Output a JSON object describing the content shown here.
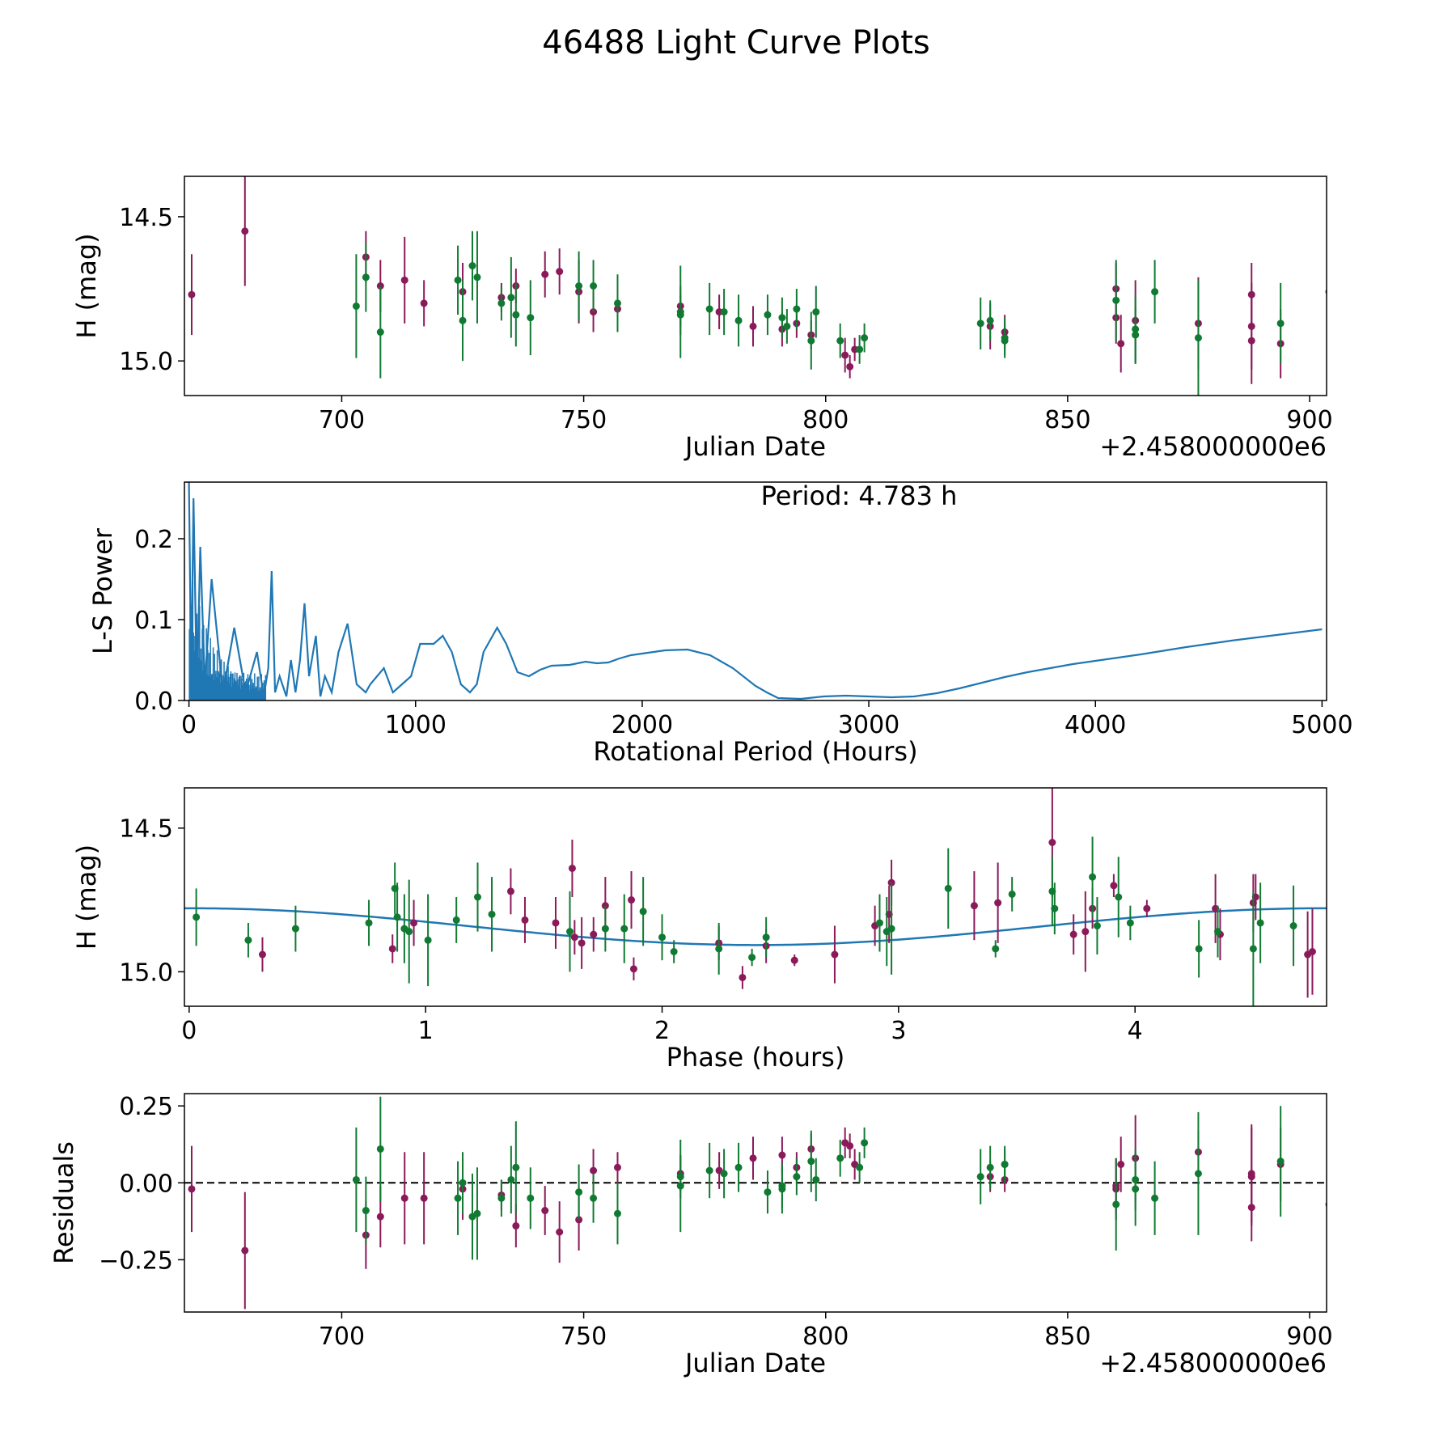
{
  "figure": {
    "title": "46488 Light Curve Plots"
  },
  "colors": {
    "purple": "#8B1A5A",
    "green": "#117A32",
    "blue": "#1F77B4",
    "axis": "#000000"
  },
  "chart_data": [
    {
      "type": "scatter",
      "id": "lightcurve",
      "xlabel": "Julian Date",
      "ylabel": "H (mag)",
      "offset_label": "+2.458000000e6",
      "xlim": [
        667.5,
        903.5
      ],
      "ylim": [
        14.36,
        15.12
      ],
      "y_inverted": true,
      "xticks": [
        700,
        750,
        800,
        850,
        900
      ],
      "yticks": [
        14.5,
        15.0
      ],
      "ytick_labels": [
        "14.5",
        "15.0"
      ],
      "series": [
        {
          "name": "purple",
          "color": "#8B1A5A",
          "x": [
            669,
            680,
            705,
            708,
            713,
            717,
            725,
            733,
            736,
            742,
            745,
            749,
            752,
            757,
            770,
            778,
            785,
            791,
            794,
            797,
            804,
            805,
            806,
            834,
            837,
            860,
            860,
            861,
            864,
            877,
            888,
            888,
            888,
            894,
            904
          ],
          "y": [
            14.77,
            14.55,
            14.64,
            14.74,
            14.72,
            14.8,
            14.76,
            14.78,
            14.74,
            14.7,
            14.69,
            14.76,
            14.83,
            14.82,
            14.81,
            14.83,
            14.88,
            14.89,
            14.87,
            14.91,
            14.98,
            15.02,
            14.96,
            14.88,
            14.9,
            14.85,
            14.75,
            14.94,
            14.86,
            14.87,
            14.77,
            14.88,
            14.93,
            14.94,
            14.76
          ],
          "err": [
            0.14,
            0.19,
            0.09,
            0.09,
            0.15,
            0.08,
            0.1,
            0.05,
            0.06,
            0.08,
            0.08,
            0.11,
            0.07,
            0.03,
            0.07,
            0.06,
            0.07,
            0.06,
            0.05,
            0.05,
            0.06,
            0.04,
            0.04,
            0.08,
            0.06,
            0.09,
            0.09,
            0.1,
            0.14,
            0.16,
            0.11,
            0.15,
            0.15,
            0.12,
            0.1
          ]
        },
        {
          "name": "green",
          "color": "#117A32",
          "x": [
            703,
            705,
            708,
            724,
            725,
            727,
            728,
            733,
            735,
            736,
            739,
            749,
            752,
            757,
            770,
            770,
            776,
            779,
            782,
            788,
            791,
            792,
            794,
            797,
            798,
            803,
            807,
            808,
            832,
            834,
            837,
            837,
            860,
            864,
            864,
            868,
            877,
            894
          ],
          "y": [
            14.81,
            14.71,
            14.9,
            14.72,
            14.86,
            14.67,
            14.71,
            14.8,
            14.78,
            14.84,
            14.85,
            14.74,
            14.74,
            14.8,
            14.84,
            14.83,
            14.82,
            14.83,
            14.86,
            14.84,
            14.85,
            14.88,
            14.82,
            14.93,
            14.83,
            14.93,
            14.96,
            14.92,
            14.87,
            14.86,
            14.92,
            14.93,
            14.79,
            14.91,
            14.89,
            14.76,
            14.92,
            14.87
          ],
          "err": [
            0.18,
            0.12,
            0.16,
            0.12,
            0.14,
            0.12,
            0.16,
            0.06,
            0.14,
            0.11,
            0.13,
            0.12,
            0.09,
            0.1,
            0.07,
            0.16,
            0.09,
            0.08,
            0.09,
            0.07,
            0.07,
            0.06,
            0.07,
            0.1,
            0.09,
            0.06,
            0.05,
            0.05,
            0.09,
            0.07,
            0.07,
            0.05,
            0.14,
            0.1,
            0.12,
            0.11,
            0.2,
            0.14
          ]
        }
      ]
    },
    {
      "type": "line",
      "id": "periodogram",
      "xlabel": "Rotational Period (Hours)",
      "ylabel": "L-S Power",
      "annotation": "Period: 4.783 h",
      "xlim": [
        -20,
        5020
      ],
      "ylim": [
        0,
        0.27
      ],
      "xticks": [
        0,
        1000,
        2000,
        3000,
        4000,
        5000
      ],
      "yticks": [
        0.0,
        0.1,
        0.2
      ],
      "ytick_labels": [
        "0.0",
        "0.1",
        "0.2"
      ],
      "series": [
        {
          "name": "power",
          "color": "#1F77B4",
          "x": [
            0,
            10,
            20,
            35,
            50,
            70,
            100,
            150,
            200,
            250,
            300,
            330,
            350,
            365,
            380,
            400,
            430,
            450,
            470,
            490,
            510,
            530,
            560,
            580,
            600,
            630,
            660,
            700,
            740,
            780,
            800,
            860,
            900,
            940,
            980,
            1020,
            1080,
            1120,
            1160,
            1200,
            1240,
            1270,
            1300,
            1360,
            1400,
            1450,
            1500,
            1550,
            1600,
            1680,
            1750,
            1800,
            1850,
            1900,
            1950,
            2000,
            2100,
            2200,
            2300,
            2400,
            2500,
            2550,
            2600,
            2700,
            2800,
            2900,
            3000,
            3100,
            3200,
            3300,
            3400,
            3500,
            3600,
            3700,
            3800,
            3900,
            4000,
            4200,
            4400,
            4600,
            4800,
            5000
          ],
          "y": [
            0.27,
            0.02,
            0.25,
            0.01,
            0.19,
            0.02,
            0.15,
            0.01,
            0.09,
            0.01,
            0.06,
            0.005,
            0.04,
            0.16,
            0.01,
            0.03,
            0.005,
            0.05,
            0.01,
            0.05,
            0.12,
            0.03,
            0.08,
            0.005,
            0.03,
            0.01,
            0.06,
            0.095,
            0.02,
            0.01,
            0.02,
            0.04,
            0.01,
            0.02,
            0.03,
            0.07,
            0.07,
            0.08,
            0.06,
            0.02,
            0.01,
            0.02,
            0.06,
            0.09,
            0.07,
            0.035,
            0.03,
            0.038,
            0.043,
            0.044,
            0.048,
            0.046,
            0.047,
            0.052,
            0.056,
            0.058,
            0.062,
            0.063,
            0.056,
            0.04,
            0.018,
            0.01,
            0.003,
            0.002,
            0.005,
            0.006,
            0.005,
            0.004,
            0.005,
            0.009,
            0.015,
            0.022,
            0.029,
            0.035,
            0.04,
            0.045,
            0.049,
            0.057,
            0.066,
            0.074,
            0.081,
            0.088
          ]
        }
      ]
    },
    {
      "type": "scatter",
      "id": "phase",
      "xlabel": "Phase (hours)",
      "ylabel": "H (mag)",
      "xlim": [
        -0.02,
        4.81
      ],
      "ylim": [
        14.36,
        15.12
      ],
      "y_inverted": true,
      "xticks": [
        0,
        1,
        2,
        3,
        4
      ],
      "yticks": [
        14.5,
        15.0
      ],
      "ytick_labels": [
        "14.5",
        "15.0"
      ],
      "model": {
        "name": "sine-fit",
        "color": "#1F77B4",
        "mean": 14.843,
        "amplitude": 0.064,
        "period": 4.783,
        "peak_phase": 2.4
      },
      "series": [
        {
          "name": "purple",
          "color": "#8B1A5A",
          "x": [
            0.31,
            0.86,
            0.95,
            1.36,
            1.42,
            1.55,
            1.62,
            1.63,
            1.66,
            1.71,
            1.76,
            1.87,
            1.88,
            2.24,
            2.34,
            2.44,
            2.56,
            2.73,
            2.9,
            2.96,
            2.97,
            3.32,
            3.42,
            3.65,
            3.74,
            3.79,
            3.82,
            3.91,
            4.05,
            4.34,
            4.36,
            4.5,
            4.51,
            4.73,
            4.75
          ],
          "y": [
            14.94,
            14.92,
            14.83,
            14.72,
            14.82,
            14.83,
            14.64,
            14.88,
            14.9,
            14.87,
            14.77,
            14.75,
            14.99,
            14.9,
            15.02,
            14.91,
            14.96,
            14.94,
            14.84,
            14.8,
            14.69,
            14.77,
            14.76,
            14.55,
            14.87,
            14.86,
            14.78,
            14.7,
            14.78,
            14.78,
            14.87,
            14.76,
            14.74,
            14.94,
            14.93
          ],
          "err": [
            0.06,
            0.05,
            0.08,
            0.08,
            0.08,
            0.09,
            0.1,
            0.06,
            0.09,
            0.06,
            0.1,
            0.1,
            0.04,
            0.06,
            0.04,
            0.06,
            0.02,
            0.1,
            0.07,
            0.1,
            0.08,
            0.12,
            0.14,
            0.19,
            0.07,
            0.14,
            0.07,
            0.04,
            0.03,
            0.12,
            0.09,
            0.1,
            0.08,
            0.15,
            0.15
          ]
        },
        {
          "name": "green",
          "color": "#117A32",
          "x": [
            0.03,
            0.25,
            0.45,
            0.76,
            0.87,
            0.88,
            0.91,
            0.93,
            1.01,
            1.13,
            1.22,
            1.28,
            1.61,
            1.76,
            1.84,
            1.92,
            2.0,
            2.05,
            2.24,
            2.38,
            2.44,
            2.92,
            2.95,
            2.97,
            3.21,
            3.41,
            3.48,
            3.65,
            3.66,
            3.82,
            3.84,
            3.93,
            3.98,
            4.27,
            4.35,
            4.5,
            4.53,
            4.67
          ],
          "y": [
            14.81,
            14.89,
            14.85,
            14.83,
            14.71,
            14.81,
            14.85,
            14.86,
            14.89,
            14.82,
            14.74,
            14.8,
            14.86,
            14.85,
            14.85,
            14.79,
            14.88,
            14.93,
            14.92,
            14.95,
            14.88,
            14.83,
            14.86,
            14.85,
            14.71,
            14.92,
            14.73,
            14.72,
            14.78,
            14.67,
            14.84,
            14.74,
            14.83,
            14.92,
            14.86,
            14.92,
            14.83,
            14.84
          ],
          "err": [
            0.1,
            0.06,
            0.08,
            0.08,
            0.09,
            0.12,
            0.12,
            0.18,
            0.16,
            0.08,
            0.12,
            0.13,
            0.14,
            0.08,
            0.12,
            0.12,
            0.08,
            0.04,
            0.09,
            0.03,
            0.07,
            0.1,
            0.12,
            0.16,
            0.14,
            0.03,
            0.06,
            0.12,
            0.09,
            0.14,
            0.1,
            0.14,
            0.06,
            0.1,
            0.09,
            0.2,
            0.14,
            0.14
          ]
        }
      ]
    },
    {
      "type": "scatter",
      "id": "residuals",
      "xlabel": "Julian Date",
      "ylabel": "Residuals",
      "offset_label": "+2.458000000e6",
      "xlim": [
        667.5,
        903.5
      ],
      "ylim": [
        -0.42,
        0.29
      ],
      "xticks": [
        700,
        750,
        800,
        850,
        900
      ],
      "yticks": [
        -0.25,
        0.0,
        0.25
      ],
      "ytick_labels": [
        "−0.25",
        "0.00",
        "0.25"
      ],
      "reference_line": 0,
      "series": [
        {
          "name": "purple",
          "color": "#8B1A5A",
          "x": [
            669,
            680,
            705,
            708,
            713,
            717,
            725,
            733,
            736,
            742,
            745,
            749,
            752,
            757,
            770,
            778,
            785,
            791,
            794,
            797,
            804,
            805,
            806,
            834,
            837,
            860,
            860,
            861,
            864,
            877,
            888,
            888,
            888,
            894,
            904
          ],
          "y": [
            -0.02,
            -0.22,
            -0.17,
            -0.11,
            -0.05,
            -0.05,
            -0.02,
            -0.04,
            -0.14,
            -0.09,
            -0.16,
            -0.12,
            0.04,
            0.05,
            0.03,
            0.04,
            0.08,
            0.09,
            0.05,
            0.11,
            0.13,
            0.12,
            0.06,
            0.02,
            0.01,
            -0.02,
            -0.01,
            0.06,
            0.08,
            0.1,
            -0.08,
            0.03,
            0.02,
            0.06,
            -0.07
          ],
          "err": [
            0.14,
            0.19,
            0.11,
            0.1,
            0.15,
            0.15,
            0.1,
            0.05,
            0.07,
            0.08,
            0.1,
            0.1,
            0.07,
            0.05,
            0.06,
            0.06,
            0.07,
            0.06,
            0.05,
            0.05,
            0.05,
            0.04,
            0.05,
            0.05,
            0.04,
            0.1,
            0.09,
            0.09,
            0.14,
            0.07,
            0.11,
            0.16,
            0.16,
            0.12,
            0.1
          ]
        },
        {
          "name": "green",
          "color": "#117A32",
          "x": [
            703,
            705,
            708,
            724,
            725,
            727,
            728,
            733,
            735,
            736,
            739,
            749,
            752,
            757,
            770,
            770,
            776,
            779,
            782,
            788,
            791,
            791,
            794,
            797,
            798,
            803,
            807,
            808,
            832,
            834,
            837,
            837,
            860,
            864,
            864,
            868,
            877,
            894
          ],
          "y": [
            0.01,
            -0.09,
            0.11,
            -0.05,
            0.0,
            -0.11,
            -0.1,
            -0.05,
            0.01,
            0.05,
            -0.05,
            -0.03,
            -0.05,
            -0.1,
            0.02,
            -0.01,
            0.04,
            0.03,
            0.05,
            -0.03,
            -0.02,
            -0.01,
            0.02,
            0.07,
            0.01,
            0.08,
            0.05,
            0.13,
            0.02,
            0.05,
            0.06,
            0.06,
            -0.07,
            0.01,
            -0.02,
            -0.05,
            0.03,
            0.07
          ],
          "err": [
            0.17,
            0.11,
            0.17,
            0.12,
            0.1,
            0.14,
            0.15,
            0.06,
            0.11,
            0.15,
            0.1,
            0.09,
            0.08,
            0.1,
            0.07,
            0.15,
            0.09,
            0.08,
            0.08,
            0.07,
            0.08,
            0.07,
            0.06,
            0.1,
            0.07,
            0.06,
            0.05,
            0.05,
            0.09,
            0.07,
            0.06,
            0.05,
            0.15,
            0.1,
            0.12,
            0.12,
            0.2,
            0.18
          ]
        }
      ]
    }
  ]
}
